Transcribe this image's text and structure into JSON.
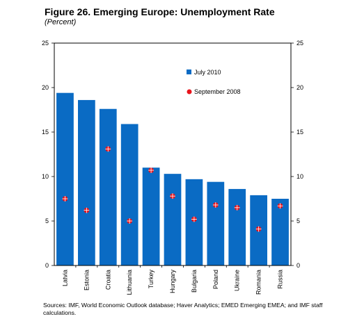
{
  "title": "Figure 26. Emerging Europe: Unemployment Rate",
  "subtitle": "(Percent)",
  "source": "Sources: IMF, World Economic Outlook database; Haver Analytics; EMED Emerging EMEA; and IMF staff calculations.",
  "colors": {
    "bar": "#0a6bc4",
    "marker": "#e8141c"
  },
  "chart_data": {
    "type": "bar",
    "categories": [
      "Latvia",
      "Estonia",
      "Croatia",
      "Lithuania",
      "Turkey",
      "Hungary",
      "Bulgaria",
      "Poland",
      "Ukraine",
      "Romania",
      "Russia"
    ],
    "series": [
      {
        "name": "July 2010",
        "type": "bar",
        "values": [
          19.4,
          18.6,
          17.6,
          15.9,
          11.0,
          10.3,
          9.7,
          9.4,
          8.6,
          7.9,
          7.5
        ]
      },
      {
        "name": "September 2008",
        "type": "scatter",
        "values": [
          7.5,
          6.2,
          13.1,
          5.0,
          10.7,
          7.8,
          5.2,
          6.8,
          6.5,
          4.1,
          6.7
        ]
      }
    ],
    "ylim": [
      0,
      25
    ],
    "yticks": [
      0,
      5,
      10,
      15,
      20,
      25
    ],
    "legend_position": "top-right"
  }
}
